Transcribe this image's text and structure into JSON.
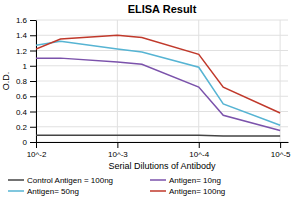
{
  "chart_data": {
    "type": "line",
    "title": "ELISA Result",
    "xlabel": "Serial Dilutions of Antibody",
    "ylabel": "O.D.",
    "log": "x",
    "grid": true,
    "legend": "bottom",
    "x": [
      0.01,
      0.005,
      0.001,
      0.0005,
      0.0001,
      5e-05,
      1e-05
    ],
    "xlim": [
      0.01,
      8e-06
    ],
    "xticks": [
      {
        "value": 0.01,
        "label": "10^-2"
      },
      {
        "value": 0.001,
        "label": "10^-3"
      },
      {
        "value": 0.0001,
        "label": "10^-4"
      },
      {
        "value": 1e-05,
        "label": "10^-5"
      }
    ],
    "ylim": [
      0,
      1.6
    ],
    "yticks": [
      0,
      0.2,
      0.4,
      0.6,
      0.8,
      1,
      1.2,
      1.4,
      1.6
    ],
    "series": [
      {
        "name": "Control Antigen = 100ng",
        "color": "#444444",
        "values": [
          0.09,
          0.09,
          0.09,
          0.09,
          0.09,
          0.08,
          0.08
        ]
      },
      {
        "name": "Antigen= 10ng",
        "color": "#7B52AB",
        "values": [
          1.1,
          1.1,
          1.05,
          1.02,
          0.72,
          0.35,
          0.15
        ]
      },
      {
        "name": "Antigen= 50ng",
        "color": "#56B4D3",
        "values": [
          1.27,
          1.32,
          1.22,
          1.18,
          0.98,
          0.5,
          0.22
        ]
      },
      {
        "name": "Antigen= 100ng",
        "color": "#C0392B",
        "values": [
          1.22,
          1.35,
          1.4,
          1.37,
          1.15,
          0.72,
          0.38
        ]
      }
    ]
  }
}
